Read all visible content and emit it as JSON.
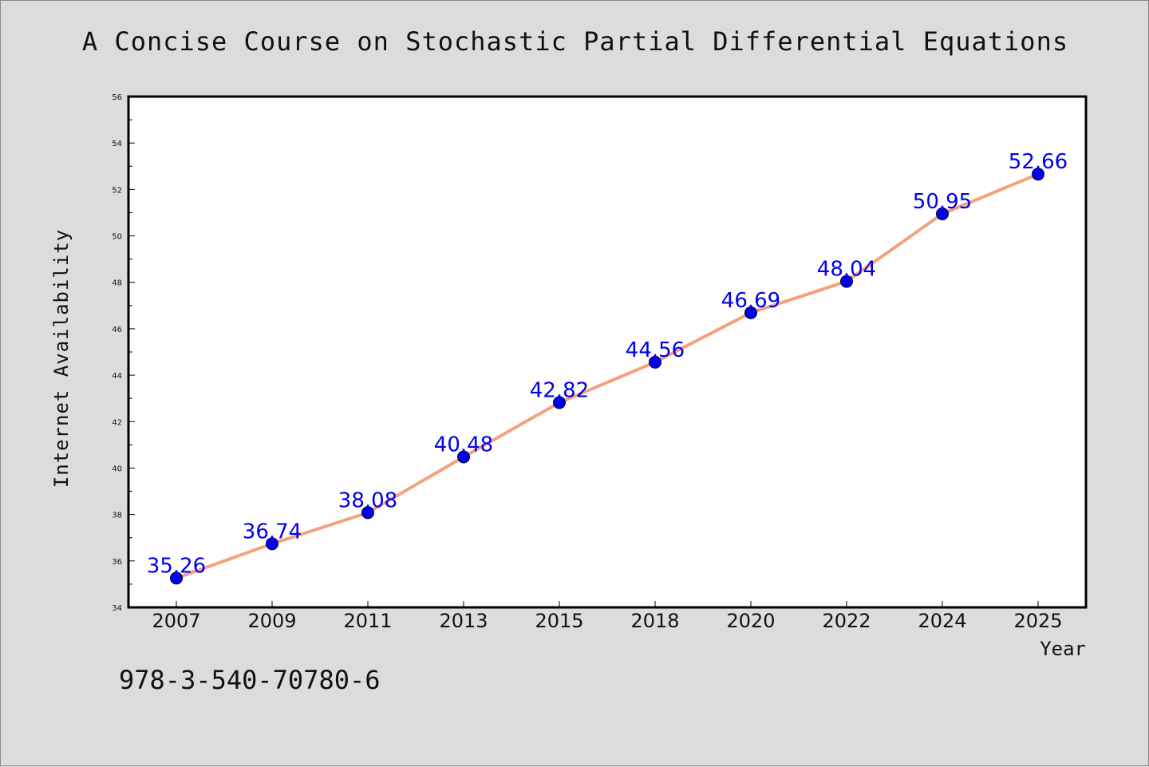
{
  "colors": {
    "page_background": "#dcdcdc",
    "plot_background": "#ffffff",
    "line": "#f4a27c",
    "marker": "#0000ee",
    "data_label": "#0000ee"
  },
  "footer_text": "978-3-540-70780-6",
  "chart_data": {
    "type": "line",
    "title": "A Concise Course on Stochastic Partial Differential Equations",
    "xlabel": "Year",
    "ylabel": "Internet Availability",
    "categories": [
      "2007",
      "2009",
      "2011",
      "2013",
      "2015",
      "2018",
      "2020",
      "2022",
      "2024",
      "2025"
    ],
    "series": [
      {
        "values": [
          35.26,
          36.74,
          38.08,
          40.48,
          42.82,
          44.56,
          46.69,
          48.04,
          50.95,
          52.66
        ],
        "data_labels": [
          "35.26",
          "36.74",
          "38.08",
          "40.48",
          "42.82",
          "44.56",
          "46.69",
          "48.04",
          "50.95",
          "52.66"
        ]
      }
    ],
    "ylim": [
      34,
      56
    ],
    "yticks": [
      34,
      36,
      38,
      40,
      42,
      44,
      46,
      48,
      50,
      52,
      54,
      56
    ],
    "grid": false,
    "legend": false
  }
}
